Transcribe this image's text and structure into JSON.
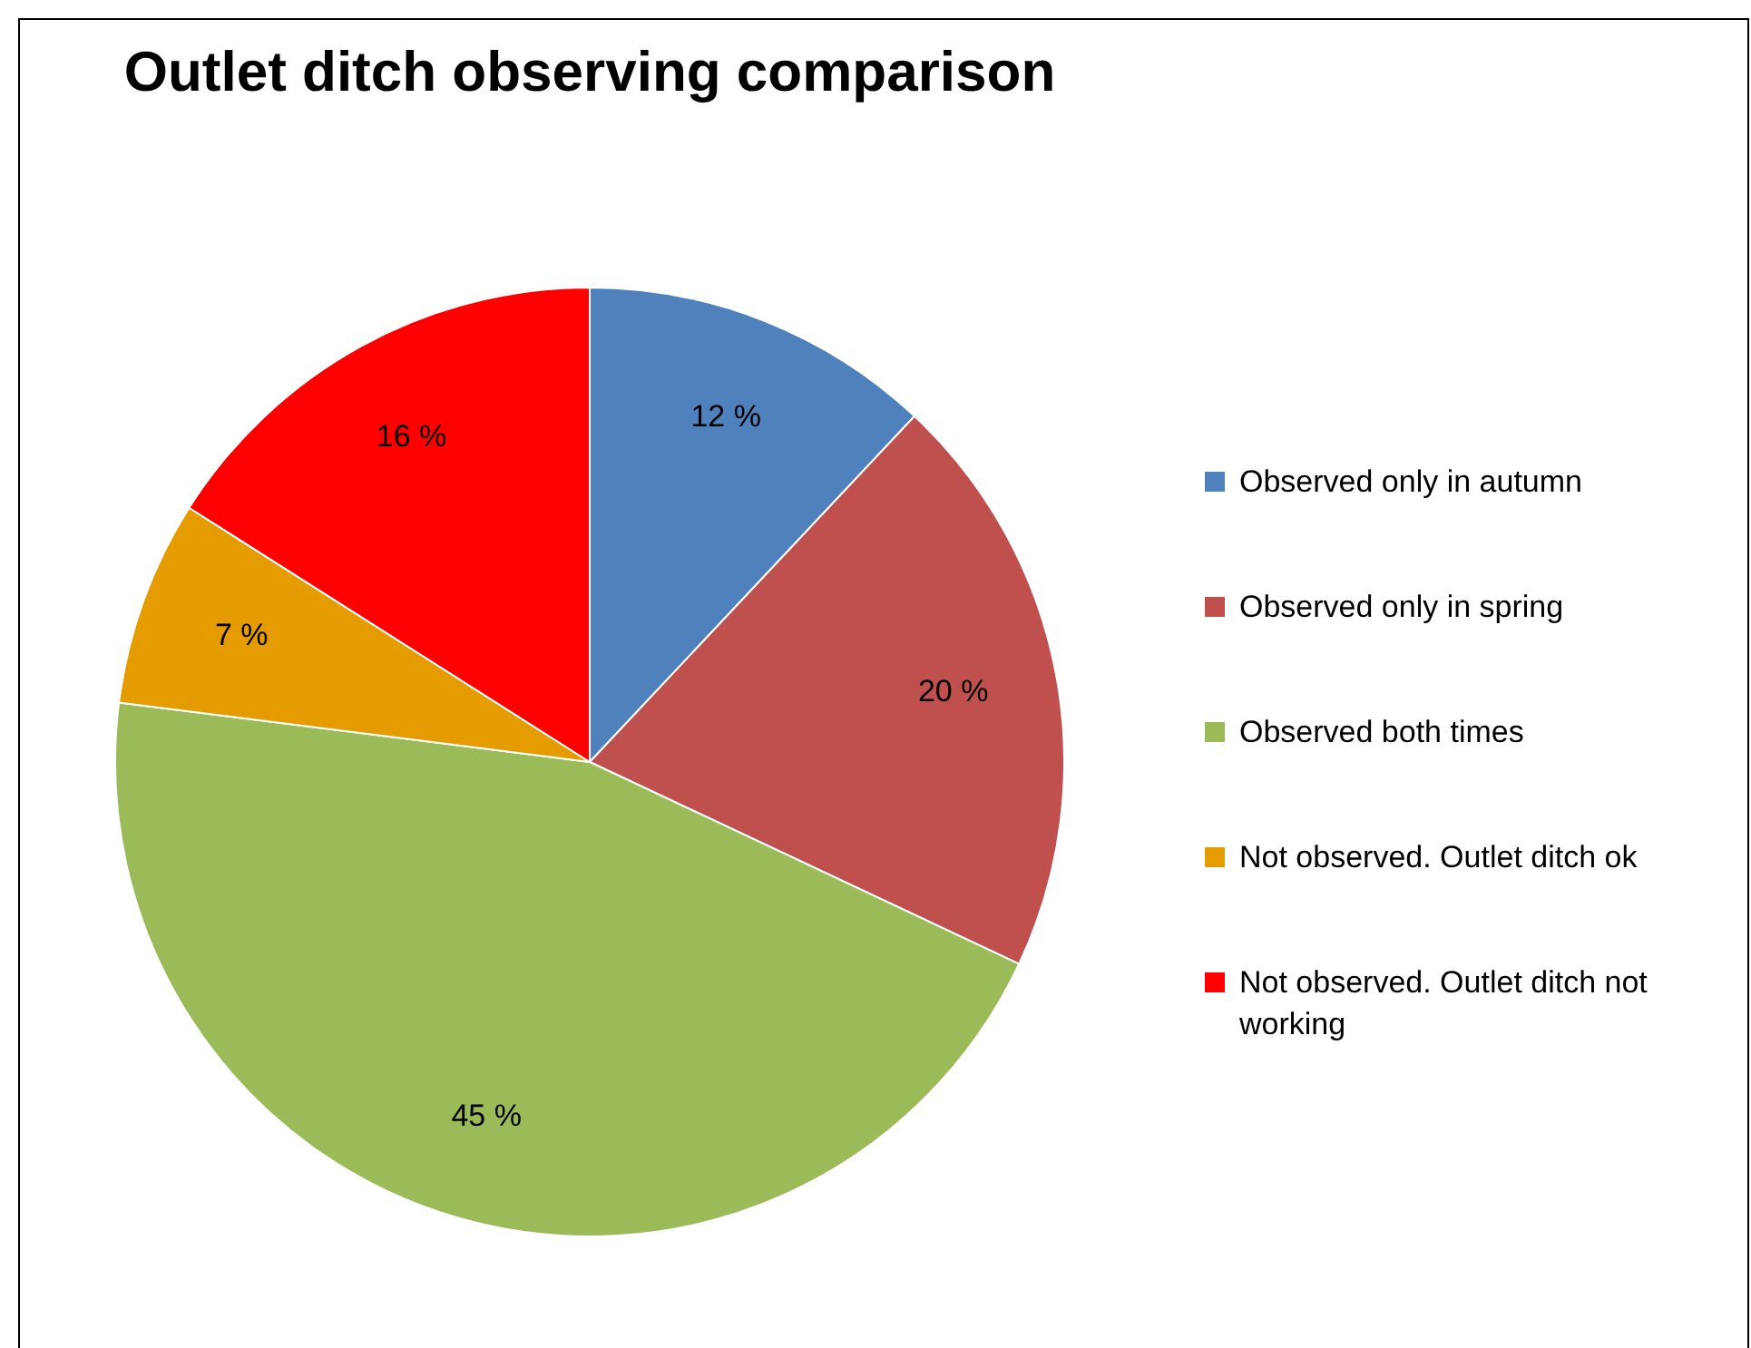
{
  "chart_data": {
    "type": "pie",
    "title": "Outlet ditch observing comparison",
    "categories": [
      "Observed only in autumn",
      "Observed only in spring",
      "Observed both times",
      "Not observed. Outlet ditch ok",
      "Not observed. Outlet ditch not working"
    ],
    "values": [
      12,
      20,
      45,
      7,
      16
    ],
    "colors": [
      "#4f81bd",
      "#c0504d",
      "#9bbb59",
      "#e59c00",
      "#ff0000"
    ],
    "value_labels": [
      "12 %",
      "20 %",
      "45 %",
      "7 %",
      "16 %"
    ],
    "legend": "right"
  }
}
